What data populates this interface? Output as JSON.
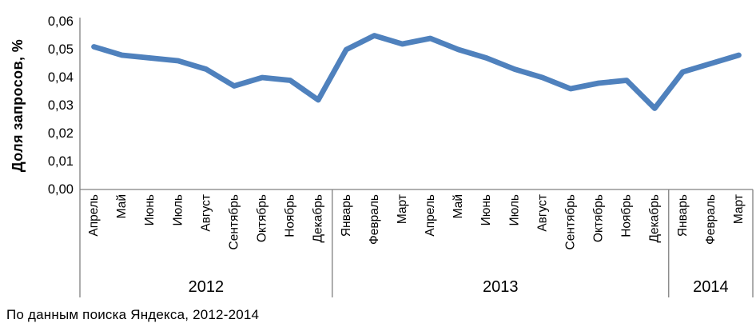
{
  "caption": "По данным поиска Яндекса, 2012-2014",
  "chart_data": {
    "type": "line",
    "title": "",
    "ylabel": "Доля запросов, %",
    "xlabel": "",
    "ylim": [
      0,
      0.06
    ],
    "ytick_step": 0.01,
    "ytick_labels": [
      "0,00",
      "0,01",
      "0,02",
      "0,03",
      "0,04",
      "0,05",
      "0,06"
    ],
    "grid": false,
    "legend_position": "none",
    "series_color": "#4f81bd",
    "axis_color": "#808080",
    "groups": [
      {
        "year": "2012",
        "months": [
          "Апрель",
          "Май",
          "Июнь",
          "Июль",
          "Август",
          "Сентябрь",
          "Октябрь",
          "Ноябрь",
          "Декабрь"
        ],
        "values": [
          0.051,
          0.048,
          0.047,
          0.046,
          0.043,
          0.037,
          0.04,
          0.039,
          0.032
        ]
      },
      {
        "year": "2013",
        "months": [
          "Январь",
          "Февраль",
          "Март",
          "Апрель",
          "Май",
          "Июнь",
          "Июль",
          "Август",
          "Сентябрь",
          "Октябрь",
          "Ноябрь",
          "Декабрь"
        ],
        "values": [
          0.05,
          0.055,
          0.052,
          0.054,
          0.05,
          0.047,
          0.043,
          0.04,
          0.036,
          0.038,
          0.039,
          0.029
        ]
      },
      {
        "year": "2014",
        "months": [
          "Январь",
          "Февраль",
          "Март"
        ],
        "values": [
          0.042,
          0.045,
          0.048
        ]
      }
    ]
  }
}
